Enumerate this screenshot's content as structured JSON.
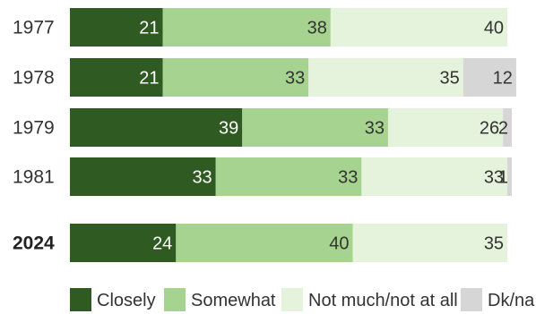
{
  "chart_data": {
    "type": "bar",
    "orientation": "horizontal",
    "stacked": true,
    "categories": [
      "1977",
      "1978",
      "1979",
      "1981",
      "2024"
    ],
    "emphasized_category": "2024",
    "series": [
      {
        "name": "Closely",
        "color": "#2f5a22",
        "label_color": "#ffffff",
        "values": [
          21,
          21,
          39,
          33,
          24
        ],
        "labels": [
          "21",
          "21",
          "39",
          "33",
          "24"
        ]
      },
      {
        "name": "Somewhat",
        "color": "#a6d38f",
        "label_color": "#333333",
        "values": [
          38,
          33,
          33,
          33,
          40
        ],
        "labels": [
          "38",
          "33",
          "33",
          "33",
          "40"
        ]
      },
      {
        "name": "Not much/not at all",
        "color": "#e5f3dc",
        "label_color": "#333333",
        "values": [
          40,
          35,
          26,
          33,
          35
        ],
        "labels": [
          "40",
          "35",
          "26",
          "33",
          "35"
        ]
      },
      {
        "name": "Dk/na",
        "color": "#d6d6d6",
        "label_color": "#333333",
        "values": [
          0,
          12,
          2,
          1,
          0
        ],
        "labels": [
          "",
          "12",
          "2",
          "1",
          ""
        ]
      }
    ],
    "legend": {
      "position": "bottom"
    },
    "grid": false,
    "xlim": [
      0,
      100
    ]
  }
}
